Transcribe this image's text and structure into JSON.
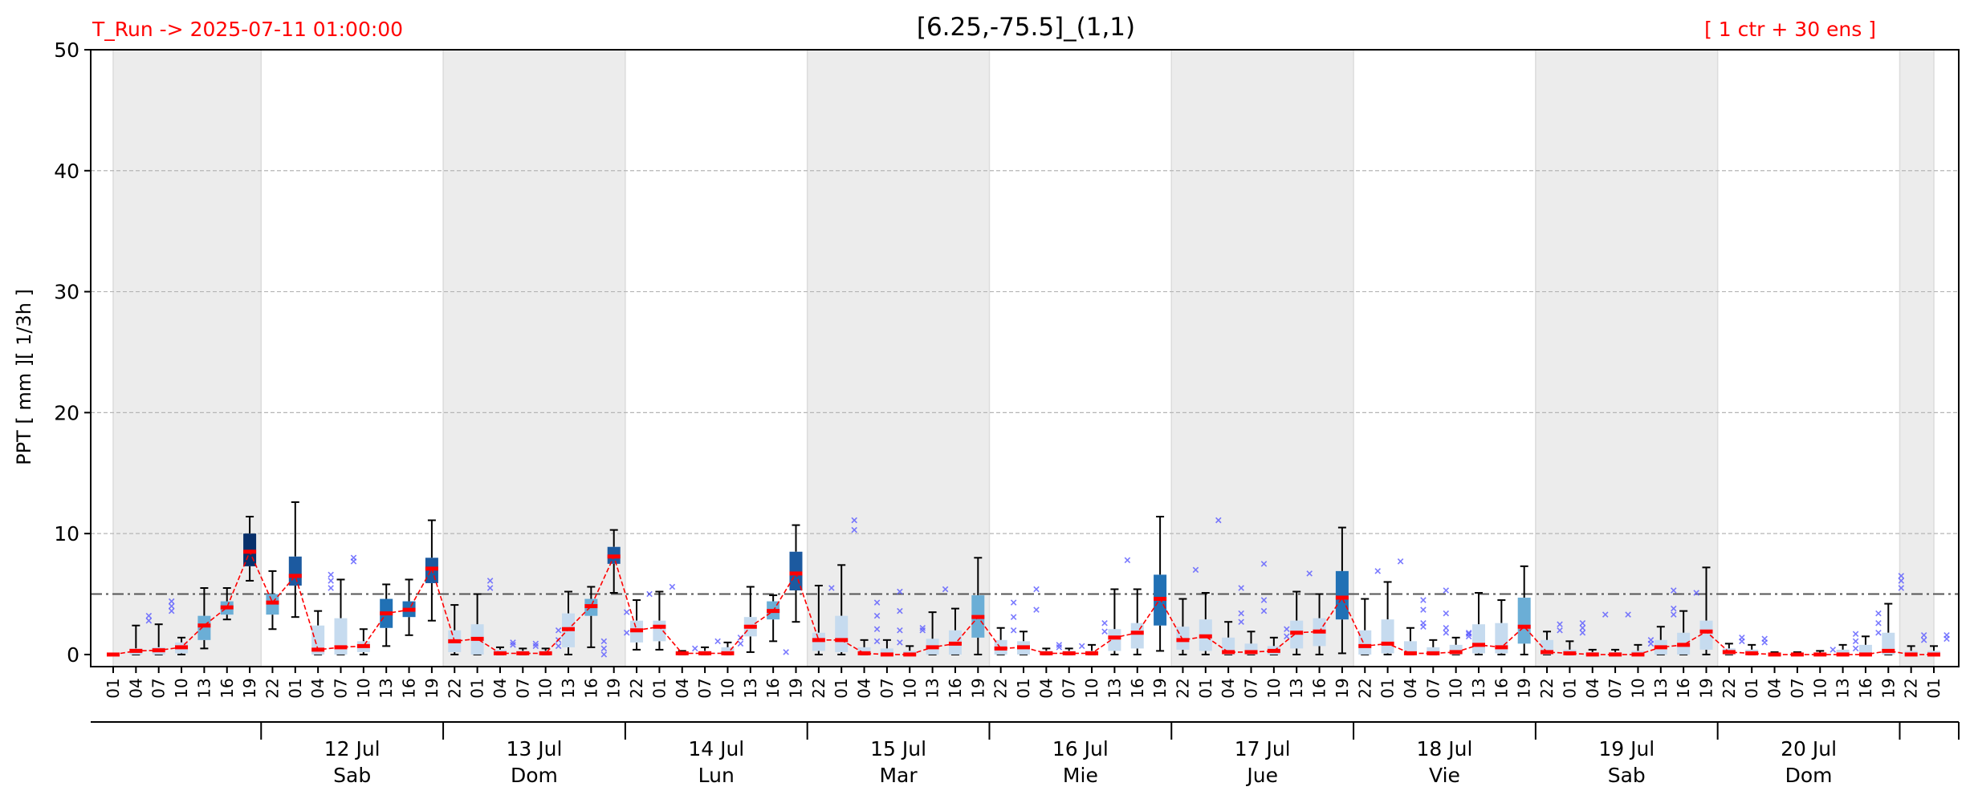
{
  "header": {
    "run_label": "T_Run -> 2025-07-11  01:00:00",
    "title": "[6.25,-75.5]_(1,1)",
    "ensemble_label": "[ 1 ctr + 30 ens ]"
  },
  "colors": {
    "header_red": "#ff0000",
    "night_shade": "#ececec",
    "median_line": "#ff0000",
    "threshold_line": "#555555",
    "outlier": "#5a5aff",
    "box_light": "#c6dbef",
    "box_mid": "#6baed6",
    "box_dark": "#2171b5",
    "box_darkest": "#08306b"
  },
  "chart_data": {
    "type": "box",
    "ylabel": "PPT  [ mm ][ 1/3h ]",
    "ylim": [
      -1,
      50
    ],
    "yticks": [
      0,
      10,
      20,
      30,
      40,
      50
    ],
    "grid": "horizontal dashed",
    "threshold": 5,
    "hour_labels": [
      "01",
      "04",
      "07",
      "10",
      "13",
      "16",
      "19",
      "22"
    ],
    "day_labels": [
      {
        "date": "12 Jul",
        "weekday": "Sab"
      },
      {
        "date": "13 Jul",
        "weekday": "Dom"
      },
      {
        "date": "14 Jul",
        "weekday": "Lun"
      },
      {
        "date": "15 Jul",
        "weekday": "Mar"
      },
      {
        "date": "16 Jul",
        "weekday": "Mie"
      },
      {
        "date": "17 Jul",
        "weekday": "Jue"
      },
      {
        "date": "18 Jul",
        "weekday": "Vie"
      },
      {
        "date": "19 Jul",
        "weekday": "Sab"
      },
      {
        "date": "20 Jul",
        "weekday": "Dom"
      }
    ],
    "boxes": [
      {
        "med": 0.0,
        "q1": 0,
        "q3": 0,
        "wlo": 0,
        "whi": 0,
        "c": 0
      },
      {
        "med": 0.3,
        "q1": 0,
        "q3": 0.5,
        "wlo": 0,
        "whi": 2.4,
        "c": 0,
        "out": [
          2.8,
          3.2
        ]
      },
      {
        "med": 0.35,
        "q1": 0,
        "q3": 0.6,
        "wlo": 0,
        "whi": 2.5,
        "c": 0,
        "out": [
          3.6,
          4.0,
          4.4
        ]
      },
      {
        "med": 0.6,
        "q1": 0.1,
        "q3": 1.0,
        "wlo": 0,
        "whi": 1.4,
        "c": 0
      },
      {
        "med": 2.4,
        "q1": 1.2,
        "q3": 3.2,
        "wlo": 0.5,
        "whi": 5.5,
        "c": 1
      },
      {
        "med": 3.9,
        "q1": 3.3,
        "q3": 4.4,
        "wlo": 2.9,
        "whi": 5.5,
        "c": 1
      },
      {
        "med": 8.5,
        "q1": 7.3,
        "q3": 10.0,
        "wlo": 6.1,
        "whi": 11.4,
        "c": 4
      },
      {
        "med": 4.3,
        "q1": 3.3,
        "q3": 5.0,
        "wlo": 2.1,
        "whi": 6.9,
        "c": 1
      },
      {
        "med": 6.5,
        "q1": 5.7,
        "q3": 8.1,
        "wlo": 3.1,
        "whi": 12.6,
        "c": 3
      },
      {
        "med": 0.4,
        "q1": 0,
        "q3": 2.4,
        "wlo": 0,
        "whi": 3.6,
        "c": 0,
        "out": [
          5.5,
          6.1,
          6.6
        ]
      },
      {
        "med": 0.6,
        "q1": 0,
        "q3": 3.0,
        "wlo": 0,
        "whi": 6.2,
        "c": 0,
        "out": [
          7.7,
          8.0
        ]
      },
      {
        "med": 0.7,
        "q1": 0.2,
        "q3": 1.1,
        "wlo": 0,
        "whi": 2.1,
        "c": 0
      },
      {
        "med": 3.4,
        "q1": 2.2,
        "q3": 4.6,
        "wlo": 0.7,
        "whi": 5.8,
        "c": 2
      },
      {
        "med": 3.7,
        "q1": 3.1,
        "q3": 4.4,
        "wlo": 1.6,
        "whi": 6.2,
        "c": 2
      },
      {
        "med": 7.1,
        "q1": 5.9,
        "q3": 8.0,
        "wlo": 2.8,
        "whi": 11.1,
        "c": 3
      },
      {
        "med": 1.1,
        "q1": 0.2,
        "q3": 2.0,
        "wlo": 0,
        "whi": 4.1,
        "c": 0
      },
      {
        "med": 1.3,
        "q1": 0,
        "q3": 2.5,
        "wlo": 0,
        "whi": 5.0,
        "c": 0,
        "out": [
          5.5,
          6.1
        ]
      },
      {
        "med": 0.1,
        "q1": 0,
        "q3": 0.4,
        "wlo": 0,
        "whi": 0.6,
        "c": 0,
        "out": [
          0.8,
          1.0
        ]
      },
      {
        "med": 0.1,
        "q1": 0,
        "q3": 0.3,
        "wlo": 0,
        "whi": 0.5,
        "c": 0,
        "out": [
          0.7,
          0.9
        ]
      },
      {
        "med": 0.1,
        "q1": 0,
        "q3": 0.3,
        "wlo": 0,
        "whi": 0.5,
        "c": 0,
        "out": [
          0.7,
          1.2,
          2.0
        ]
      },
      {
        "med": 2.1,
        "q1": 0.6,
        "q3": 3.4,
        "wlo": 0,
        "whi": 5.2,
        "c": 0
      },
      {
        "med": 4.0,
        "q1": 3.2,
        "q3": 4.6,
        "wlo": 0.6,
        "whi": 5.6,
        "c": 1,
        "out": [
          0.5,
          1.1,
          0
        ]
      },
      {
        "med": 8.1,
        "q1": 7.5,
        "q3": 8.9,
        "wlo": 5.1,
        "whi": 10.3,
        "c": 3,
        "out": [
          3.5,
          1.8
        ]
      },
      {
        "med": 2.0,
        "q1": 1.0,
        "q3": 2.8,
        "wlo": 0.4,
        "whi": 4.5,
        "c": 0,
        "out": [
          5.0
        ]
      },
      {
        "med": 2.3,
        "q1": 1.1,
        "q3": 2.8,
        "wlo": 0.4,
        "whi": 5.2,
        "c": 0,
        "out": [
          5.6
        ]
      },
      {
        "med": 0.1,
        "q1": 0,
        "q3": 0.2,
        "wlo": 0,
        "whi": 0.3,
        "c": 0,
        "out": [
          0.5
        ]
      },
      {
        "med": 0.1,
        "q1": 0,
        "q3": 0.3,
        "wlo": 0,
        "whi": 0.6,
        "c": 0,
        "out": [
          1.1
        ]
      },
      {
        "med": 0.1,
        "q1": 0,
        "q3": 0.6,
        "wlo": 0,
        "whi": 1.0,
        "c": 0,
        "out": [
          1.4,
          0.9
        ]
      },
      {
        "med": 2.3,
        "q1": 1.5,
        "q3": 3.1,
        "wlo": 0.2,
        "whi": 5.6,
        "c": 0
      },
      {
        "med": 3.6,
        "q1": 2.9,
        "q3": 4.4,
        "wlo": 1.1,
        "whi": 4.9,
        "c": 1,
        "out": [
          0.2
        ]
      },
      {
        "med": 6.7,
        "q1": 5.3,
        "q3": 8.5,
        "wlo": 2.7,
        "whi": 10.7,
        "c": 3
      },
      {
        "med": 1.2,
        "q1": 0.3,
        "q3": 1.8,
        "wlo": 0,
        "whi": 5.7,
        "c": 0,
        "out": [
          5.5
        ]
      },
      {
        "med": 1.2,
        "q1": 0.2,
        "q3": 3.2,
        "wlo": 0,
        "whi": 7.4,
        "c": 0,
        "out": [
          10.3,
          11.1
        ]
      },
      {
        "med": 0.1,
        "q1": 0,
        "q3": 0.6,
        "wlo": 0,
        "whi": 1.2,
        "c": 0,
        "out": [
          3.2,
          4.3,
          2.1,
          1.1
        ]
      },
      {
        "med": 0.0,
        "q1": 0,
        "q3": 0.5,
        "wlo": 0,
        "whi": 1.2,
        "c": 0,
        "out": [
          5.2,
          3.6,
          2.0,
          1.0
        ]
      },
      {
        "med": 0.0,
        "q1": 0,
        "q3": 0.3,
        "wlo": 0,
        "whi": 0.7,
        "c": 0,
        "out": [
          2.2,
          2.0
        ]
      },
      {
        "med": 0.6,
        "q1": 0,
        "q3": 1.3,
        "wlo": 0,
        "whi": 3.5,
        "c": 0,
        "out": [
          5.4
        ]
      },
      {
        "med": 0.9,
        "q1": 0,
        "q3": 2.0,
        "wlo": 0,
        "whi": 3.8,
        "c": 0
      },
      {
        "med": 3.1,
        "q1": 1.4,
        "q3": 4.9,
        "wlo": 0,
        "whi": 8.0,
        "c": 1
      },
      {
        "med": 0.5,
        "q1": 0,
        "q3": 1.2,
        "wlo": 0,
        "whi": 2.2,
        "c": 0,
        "out": [
          4.3,
          3.1,
          2.0
        ]
      },
      {
        "med": 0.6,
        "q1": 0,
        "q3": 1.1,
        "wlo": 0,
        "whi": 1.9,
        "c": 0,
        "out": [
          5.4,
          3.7
        ]
      },
      {
        "med": 0.1,
        "q1": 0,
        "q3": 0.3,
        "wlo": 0,
        "whi": 0.5,
        "c": 0,
        "out": [
          0.6,
          0.8
        ]
      },
      {
        "med": 0.1,
        "q1": 0,
        "q3": 0.3,
        "wlo": 0,
        "whi": 0.5,
        "c": 0,
        "out": [
          0.7
        ]
      },
      {
        "med": 0.1,
        "q1": 0,
        "q3": 0.3,
        "wlo": 0,
        "whi": 0.8,
        "c": 0,
        "out": [
          1.9,
          2.6
        ]
      },
      {
        "med": 1.4,
        "q1": 0.3,
        "q3": 2.1,
        "wlo": 0,
        "whi": 5.4,
        "c": 0,
        "out": [
          7.8
        ]
      },
      {
        "med": 1.8,
        "q1": 0.5,
        "q3": 2.6,
        "wlo": 0,
        "whi": 5.4,
        "c": 0
      },
      {
        "med": 4.6,
        "q1": 2.4,
        "q3": 6.6,
        "wlo": 0.3,
        "whi": 11.4,
        "c": 2
      },
      {
        "med": 1.2,
        "q1": 0.4,
        "q3": 2.3,
        "wlo": 0,
        "whi": 4.6,
        "c": 0,
        "out": [
          7.0
        ]
      },
      {
        "med": 1.5,
        "q1": 0.3,
        "q3": 2.9,
        "wlo": 0,
        "whi": 5.1,
        "c": 0,
        "out": [
          11.1
        ]
      },
      {
        "med": 0.2,
        "q1": 0,
        "q3": 1.4,
        "wlo": 0,
        "whi": 2.7,
        "c": 0,
        "out": [
          5.5,
          3.4,
          2.7
        ]
      },
      {
        "med": 0.2,
        "q1": 0,
        "q3": 0.9,
        "wlo": 0,
        "whi": 1.9,
        "c": 0,
        "out": [
          7.5,
          4.5,
          3.6
        ]
      },
      {
        "med": 0.3,
        "q1": 0,
        "q3": 0.7,
        "wlo": 0,
        "whi": 1.4,
        "c": 0,
        "out": [
          2.1,
          1.5
        ]
      },
      {
        "med": 1.8,
        "q1": 0.5,
        "q3": 2.8,
        "wlo": 0,
        "whi": 5.2,
        "c": 0,
        "out": [
          6.7
        ]
      },
      {
        "med": 1.9,
        "q1": 0.7,
        "q3": 3.0,
        "wlo": 0,
        "whi": 5.0,
        "c": 0
      },
      {
        "med": 4.7,
        "q1": 2.9,
        "q3": 6.9,
        "wlo": 0.1,
        "whi": 10.5,
        "c": 2
      },
      {
        "med": 0.7,
        "q1": 0,
        "q3": 2.0,
        "wlo": 0,
        "whi": 4.6,
        "c": 0,
        "out": [
          6.9
        ]
      },
      {
        "med": 0.9,
        "q1": 0.1,
        "q3": 2.9,
        "wlo": 0,
        "whi": 6.0,
        "c": 0,
        "out": [
          7.7
        ]
      },
      {
        "med": 0.1,
        "q1": 0,
        "q3": 1.1,
        "wlo": 0,
        "whi": 2.2,
        "c": 0,
        "out": [
          4.5,
          3.7,
          2.6,
          2.3
        ]
      },
      {
        "med": 0.1,
        "q1": 0,
        "q3": 0.6,
        "wlo": 0,
        "whi": 1.2,
        "c": 0,
        "out": [
          5.3,
          3.4,
          2.2,
          1.8
        ]
      },
      {
        "med": 0.2,
        "q1": 0,
        "q3": 0.8,
        "wlo": 0,
        "whi": 1.4,
        "c": 0,
        "out": [
          1.8,
          1.7,
          1.5
        ]
      },
      {
        "med": 0.8,
        "q1": 0.1,
        "q3": 2.5,
        "wlo": 0,
        "whi": 5.1,
        "c": 0
      },
      {
        "med": 0.6,
        "q1": 0.1,
        "q3": 2.6,
        "wlo": 0,
        "whi": 4.5,
        "c": 0
      },
      {
        "med": 2.3,
        "q1": 0.9,
        "q3": 4.7,
        "wlo": 0,
        "whi": 7.3,
        "c": 1
      },
      {
        "med": 0.2,
        "q1": 0,
        "q3": 1.2,
        "wlo": 0,
        "whi": 1.9,
        "c": 0,
        "out": [
          2.5,
          2.0
        ]
      },
      {
        "med": 0.1,
        "q1": 0,
        "q3": 0.4,
        "wlo": 0,
        "whi": 1.1,
        "c": 0,
        "out": [
          2.6,
          2.2,
          1.8
        ]
      },
      {
        "med": 0.0,
        "q1": 0,
        "q3": 0.2,
        "wlo": 0,
        "whi": 0.4,
        "c": 0,
        "out": [
          3.3
        ]
      },
      {
        "med": 0.0,
        "q1": 0,
        "q3": 0.2,
        "wlo": 0,
        "whi": 0.4,
        "c": 0,
        "out": [
          3.3
        ]
      },
      {
        "med": 0.0,
        "q1": 0,
        "q3": 0.3,
        "wlo": 0,
        "whi": 0.8,
        "c": 0,
        "out": [
          1.2,
          0.9
        ]
      },
      {
        "med": 0.6,
        "q1": 0,
        "q3": 1.2,
        "wlo": 0,
        "whi": 2.3,
        "c": 0,
        "out": [
          5.3,
          3.8,
          3.3
        ]
      },
      {
        "med": 0.8,
        "q1": 0,
        "q3": 1.8,
        "wlo": 0,
        "whi": 3.6,
        "c": 0,
        "out": [
          5.1
        ]
      },
      {
        "med": 1.9,
        "q1": 0.4,
        "q3": 2.8,
        "wlo": 0,
        "whi": 7.2,
        "c": 0
      },
      {
        "med": 0.2,
        "q1": 0,
        "q3": 0.5,
        "wlo": 0,
        "whi": 0.9,
        "c": 0,
        "out": [
          1.4,
          1.1
        ]
      },
      {
        "med": 0.1,
        "q1": 0,
        "q3": 0.4,
        "wlo": 0,
        "whi": 0.8,
        "c": 0,
        "out": [
          1.3,
          1.0
        ]
      },
      {
        "med": 0.0,
        "q1": 0,
        "q3": 0.1,
        "wlo": 0,
        "whi": 0.2,
        "c": 0
      },
      {
        "med": 0.0,
        "q1": 0,
        "q3": 0.1,
        "wlo": 0,
        "whi": 0.2,
        "c": 0
      },
      {
        "med": 0.0,
        "q1": 0,
        "q3": 0.1,
        "wlo": 0,
        "whi": 0.3,
        "c": 0,
        "out": [
          0.4
        ]
      },
      {
        "med": 0.0,
        "q1": 0,
        "q3": 0.4,
        "wlo": 0,
        "whi": 0.8,
        "c": 0,
        "out": [
          1.7,
          1.1,
          0.5
        ]
      },
      {
        "med": 0.0,
        "q1": 0,
        "q3": 0.8,
        "wlo": 0,
        "whi": 1.5,
        "c": 0,
        "out": [
          3.4,
          2.6,
          1.8
        ]
      },
      {
        "med": 0.3,
        "q1": 0,
        "q3": 1.8,
        "wlo": 0,
        "whi": 4.2,
        "c": 0,
        "out": [
          6.5,
          6.1,
          5.5
        ]
      },
      {
        "med": 0.0,
        "q1": 0,
        "q3": 0.3,
        "wlo": 0,
        "whi": 0.7,
        "c": 0,
        "out": [
          1.6,
          1.2
        ]
      },
      {
        "med": 0.0,
        "q1": 0,
        "q3": 0.3,
        "wlo": 0,
        "whi": 0.7,
        "c": 0,
        "out": [
          1.6,
          1.3
        ]
      }
    ]
  }
}
